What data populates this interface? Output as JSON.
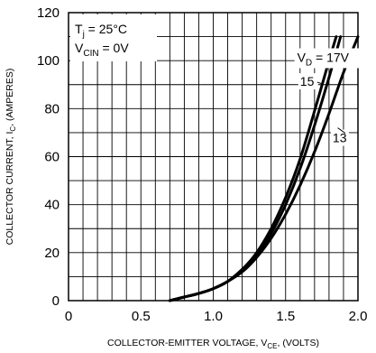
{
  "chart_data": {
    "type": "line",
    "title": "",
    "xlabel": {
      "main": "COLLECTOR-EMITTER VOLTAGE, V",
      "sub": "CE",
      "rest": ", (VOLTS)"
    },
    "ylabel": {
      "main": "COLLECTOR CURRENT, I",
      "sub": "C",
      "rest": ", (AMPERES)"
    },
    "xlim": [
      0,
      2.0
    ],
    "ylim": [
      0,
      120
    ],
    "x_ticks": [
      0,
      0.5,
      1.0,
      1.5,
      2.0
    ],
    "x_tick_labels": [
      "0",
      "0.5",
      "1.0",
      "1.5",
      "2.0"
    ],
    "y_ticks": [
      0,
      20,
      40,
      60,
      80,
      100,
      120
    ],
    "y_tick_labels": [
      "0",
      "20",
      "40",
      "60",
      "80",
      "100",
      "120"
    ],
    "grid": true,
    "conditions": {
      "tj": {
        "main": "T",
        "sub": "j",
        "rest": " = 25°C"
      },
      "vcin": {
        "main": "V",
        "sub": "CIN",
        "rest": " = 0V"
      }
    },
    "series": [
      {
        "name": "V_D = 17V",
        "x": [
          0.7,
          0.8,
          0.9,
          1.0,
          1.1,
          1.2,
          1.3,
          1.4,
          1.5,
          1.6,
          1.7,
          1.8,
          1.85
        ],
        "y": [
          0,
          1.5,
          3,
          5,
          8,
          13,
          20,
          30,
          43,
          59,
          79,
          100,
          110
        ]
      },
      {
        "name": "15",
        "x": [
          0.7,
          0.8,
          0.9,
          1.0,
          1.1,
          1.2,
          1.3,
          1.4,
          1.5,
          1.6,
          1.7,
          1.8,
          1.88
        ],
        "y": [
          0,
          1.5,
          3,
          5,
          8,
          13,
          19,
          28,
          40,
          55,
          73,
          93,
          110
        ]
      },
      {
        "name": "13",
        "x": [
          0.7,
          0.8,
          0.9,
          1.0,
          1.1,
          1.2,
          1.3,
          1.4,
          1.5,
          1.6,
          1.7,
          1.8,
          1.9,
          2.0
        ],
        "y": [
          0,
          1.5,
          3,
          5,
          8,
          12,
          18,
          26,
          36,
          48,
          62,
          78,
          95,
          110
        ]
      }
    ],
    "series_labels": {
      "vd": {
        "main": "V",
        "sub": "D",
        "rest": " = 17V"
      },
      "v15": "15",
      "v13": "13"
    }
  }
}
